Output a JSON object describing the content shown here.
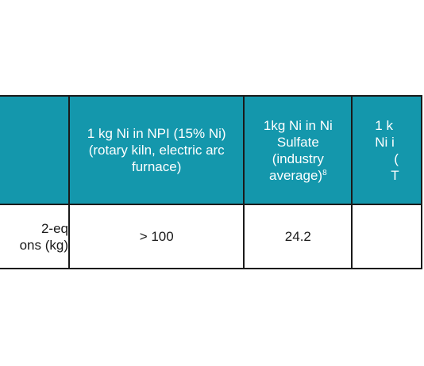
{
  "table": {
    "header": {
      "col0": [],
      "col1": [
        "1 kg Ni in NPI (15% Ni)",
        "(rotary kiln, electric arc",
        "furnace)"
      ],
      "col2": {
        "lines": [
          "1kg Ni in Ni",
          "Sulfate",
          "(industry"
        ],
        "last_line": "average)",
        "last_sup": "8"
      },
      "col3": [
        "1 k",
        "Ni i",
        "(",
        "T"
      ]
    },
    "row1": {
      "label": [
        "2-eq",
        "ons (kg)"
      ],
      "npi": "> 100",
      "sulfate": "24.2",
      "col3": ""
    }
  },
  "colors": {
    "header_bg": "#1497ac",
    "header_text": "#ffffff",
    "border": "#1a1a1a",
    "background": "#ffffff"
  }
}
